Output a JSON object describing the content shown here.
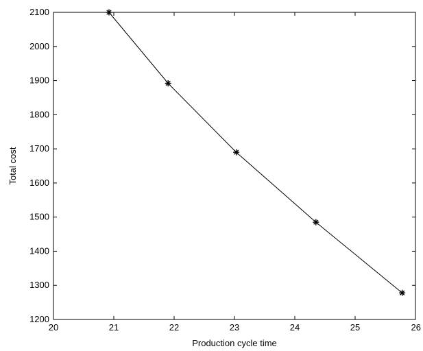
{
  "chart_data": {
    "type": "line",
    "title": "",
    "xlabel": "Production cycle time",
    "ylabel": "Total cost",
    "xlim": [
      20,
      26
    ],
    "ylim": [
      1200,
      2100
    ],
    "x_ticks": [
      20,
      21,
      22,
      23,
      24,
      25,
      26
    ],
    "x_tick_labels": [
      "20",
      "21",
      "22",
      "23",
      "24",
      "25",
      "26"
    ],
    "y_ticks": [
      1200,
      1300,
      1400,
      1500,
      1600,
      1700,
      1800,
      1900,
      2000,
      2100
    ],
    "y_tick_labels": [
      "1200",
      "1300",
      "1400",
      "1500",
      "1600",
      "1700",
      "1800",
      "1900",
      "2000",
      "2100"
    ],
    "grid": false,
    "legend": "none",
    "series": [
      {
        "marker": "star",
        "color": "#000000",
        "x": [
          20.92,
          21.9,
          23.03,
          24.35,
          25.78
        ],
        "y": [
          2100,
          1892,
          1690,
          1485,
          1278
        ]
      }
    ]
  }
}
